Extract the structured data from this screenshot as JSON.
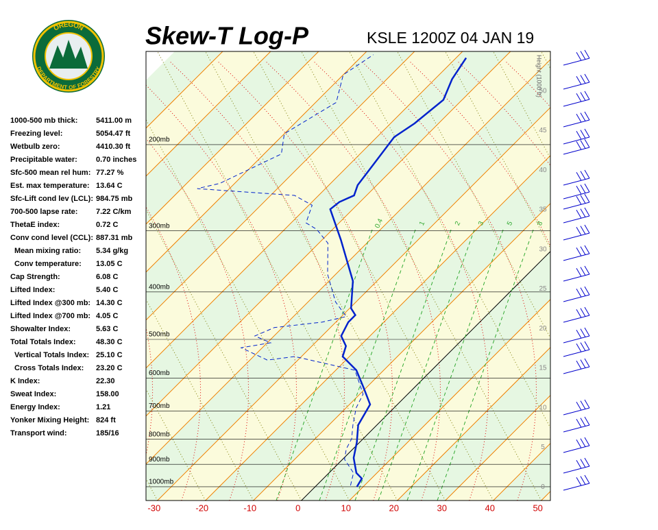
{
  "header": {
    "title": "Skew-T Log-P",
    "station": "KSLE 1200Z 04 JAN 19"
  },
  "logo": {
    "top": "OREGON",
    "bottom": "DEPARTMENT OF FORESTRY"
  },
  "indices": [
    [
      "1000-500 mb thick:",
      "5411.00 m"
    ],
    [
      "Freezing level:",
      "5054.47 ft"
    ],
    [
      "Wetbulb zero:",
      "4410.30 ft"
    ],
    [
      "Precipitable water:",
      "0.70 inches"
    ],
    [
      "Sfc-500 mean rel hum:",
      "77.27 %"
    ],
    [
      "Est. max temperature:",
      "13.64 C"
    ],
    [
      "Sfc-Lift cond lev (LCL):",
      "984.75 mb"
    ],
    [
      "700-500 lapse rate:",
      "7.22 C/km"
    ],
    [
      "ThetaE index:",
      "0.72 C"
    ],
    [
      "Conv cond level (CCL):",
      "887.31 mb"
    ],
    [
      "Mean mixing ratio:",
      "5.34 g/kg"
    ],
    [
      "Conv temperature:",
      "13.05 C"
    ],
    [
      "Cap Strength:",
      "6.08 C"
    ],
    [
      "Lifted Index:",
      "5.40 C"
    ],
    [
      "Lifted Index @300 mb:",
      "14.30 C"
    ],
    [
      "Lifted Index @700 mb:",
      "4.05 C"
    ],
    [
      "Showalter Index:",
      "5.63 C"
    ],
    [
      "Total Totals Index:",
      "48.30 C"
    ],
    [
      "Vertical Totals Index:",
      "25.10 C"
    ],
    [
      "Cross Totals Index:",
      "23.20 C"
    ],
    [
      "K Index:",
      "22.30"
    ],
    [
      "Sweat Index:",
      "158.00"
    ],
    [
      "Energy Index:",
      "1.21"
    ],
    [
      "Yonker Mixing Height:",
      "824 ft"
    ],
    [
      "Transport wind:",
      "185/16"
    ]
  ],
  "chart_data": {
    "type": "skew-t",
    "xlim": [
      -32.4,
      51.9
    ],
    "xticks": [
      -30,
      -20,
      -10,
      0,
      10,
      20,
      30,
      40,
      50
    ],
    "ylim": [
      1067,
      129
    ],
    "yticks": [
      {
        "value": 1000,
        "label": "1000mb"
      },
      {
        "value": 900,
        "label": "900mb"
      },
      {
        "value": 800,
        "label": "800mb"
      },
      {
        "value": 700,
        "label": "700mb"
      },
      {
        "value": 600,
        "label": "600mb"
      },
      {
        "value": 500,
        "label": "500mb"
      },
      {
        "value": 400,
        "label": "400mb"
      },
      {
        "value": 300,
        "label": "300mb"
      },
      {
        "value": 200,
        "label": "200mb"
      }
    ],
    "y2_label": "Height (1000 ft)",
    "y2lim": [
      -1.7,
      55.0
    ],
    "y2ticks": [
      0,
      5,
      10,
      15,
      20,
      25,
      30,
      35,
      40,
      45,
      50
    ],
    "mixing_ratio_labels": [
      "0.4",
      "1",
      "2",
      "3",
      "5",
      "8"
    ],
    "temperature": {
      "color": "#0022cc",
      "pressure": [
        1000,
        962,
        937,
        873,
        811,
        748,
        679,
        626,
        578,
        542,
        516,
        492,
        461,
        446,
        432,
        380,
        313,
        271,
        262,
        254,
        242,
        220,
        193,
        181,
        162,
        147,
        133
      ],
      "values": [
        8.7,
        8.0,
        5.7,
        2.0,
        -0.6,
        -3.9,
        -5.7,
        -10.7,
        -15.7,
        -21.4,
        -22.9,
        -26.0,
        -27.4,
        -27.4,
        -29.7,
        -35.0,
        -46.1,
        -54.7,
        -54.3,
        -52.6,
        -54.0,
        -55.0,
        -56.4,
        -55.0,
        -53.9,
        -56.4,
        -57.9
      ]
    },
    "dewpoint": {
      "color": "#0022cc",
      "pressure": [
        994,
        937,
        879,
        837,
        798,
        748,
        690,
        647,
        578,
        542,
        551,
        520,
        508,
        492,
        473,
        461,
        449,
        419,
        368,
        318,
        298,
        289,
        266,
        254,
        246,
        240,
        209,
        190,
        164,
        144,
        131
      ],
      "values": [
        7.1,
        5.1,
        0.4,
        -1.4,
        -2.4,
        -5.0,
        -7.9,
        -9.3,
        -16.0,
        -31.4,
        -36.4,
        -44.4,
        -39.3,
        -44.0,
        -41.7,
        -32.9,
        -29.0,
        -34.3,
        -41.7,
        -48.1,
        -53.3,
        -56.9,
        -59.3,
        -65.0,
        -86.7,
        -83.1,
        -76.4,
        -80.0,
        -75.7,
        -80.0,
        -77.9
      ]
    }
  }
}
